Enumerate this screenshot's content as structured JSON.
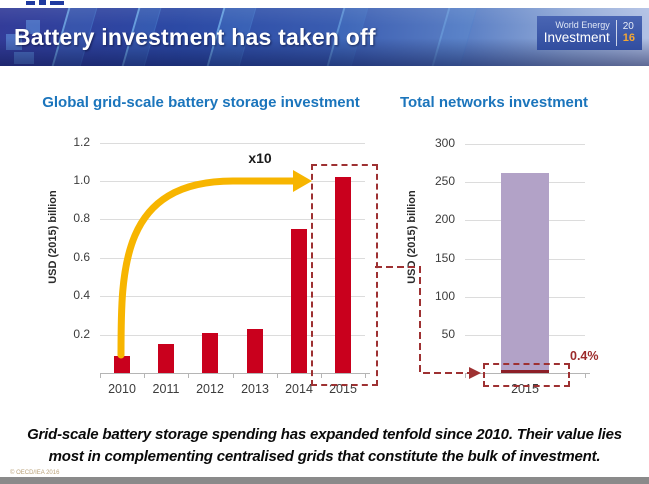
{
  "header": {
    "title": "Battery investment has taken off",
    "logo": {
      "brand_top": "World Energy",
      "brand_bottom": "Investment",
      "year_top": "20",
      "year_bottom": "16"
    }
  },
  "chart_data": [
    {
      "type": "bar",
      "title": "Global grid-scale battery storage investment",
      "ylabel": "USD (2015) billion",
      "xlabel": "",
      "categories": [
        "2010",
        "2011",
        "2012",
        "2013",
        "2014",
        "2015"
      ],
      "values": [
        0.09,
        0.15,
        0.21,
        0.23,
        0.75,
        1.02
      ],
      "ylim": [
        0,
        1.2
      ],
      "yticks": [
        0.2,
        0.4,
        0.6,
        0.8,
        1.0,
        1.2
      ],
      "ytick_labels": [
        "0.2",
        "0.4",
        "0.6",
        "0.8",
        "1.0",
        "1.2"
      ],
      "grid": true,
      "legend": "none",
      "bar_color": "#c9001d",
      "annotations": {
        "multiplier": "x10"
      }
    },
    {
      "type": "bar",
      "title": "Total networks investment",
      "ylabel": "USD (2015) billion",
      "xlabel": "",
      "categories": [
        "2015"
      ],
      "values": [
        262
      ],
      "battery_segment_value": 1,
      "ylim": [
        0,
        300
      ],
      "yticks": [
        50,
        100,
        150,
        200,
        250,
        300
      ],
      "ytick_labels": [
        "50",
        "100",
        "150",
        "200",
        "250",
        "300"
      ],
      "grid": true,
      "legend": "none",
      "bar_color": "#b2a2c7",
      "annotations": {
        "share_label": "0.4%"
      }
    }
  ],
  "footnote": {
    "line1": "Grid-scale battery storage spending has expanded tenfold since 2010. Their value lies",
    "line2": "most in complementing centralised grids that constitute the bulk of investment."
  },
  "page": {
    "copyright": "© OECD/IEA 2016"
  },
  "colors": {
    "bar_red": "#c9001d",
    "bar_purple": "#b2a2c7",
    "battery_maroon": "#8c1f28",
    "arrow_yellow": "#f7b500",
    "dashed_red": "#9e3132",
    "title_blue": "#1b75bc",
    "logo_orange": "#f5a733",
    "banner_navy": "#2d3f9e"
  }
}
